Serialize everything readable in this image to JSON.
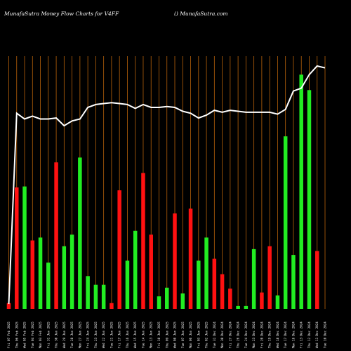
{
  "header": {
    "left": "MunafaSutra  Money Flow  Charts for V4FF",
    "right": "() MunafaSutra.com"
  },
  "colors": {
    "background": "#000000",
    "gridline": "#b8620a",
    "up": "#22ee22",
    "down": "#ff1111",
    "line": "#ffffff"
  },
  "chart_data": {
    "type": "bar",
    "grid": true,
    "categories": [
      "Fri 07 Feb 2025",
      "Thu 06 Feb 2025",
      "Wed 05 Feb 2025",
      "Tue 04 Feb 2025",
      "Mon 03 Feb 2025",
      "Fri 31 Jan 2025",
      "Thu 30 Jan 2025",
      "Wed 29 Jan 2025",
      "Tue 28 Jan 2025",
      "Mon 27 Jan 2025",
      "Fri 24 Jan 2025",
      "Thu 23 Jan 2025",
      "Wed 22 Jan 2025",
      "Tue 21 Jan 2025",
      "Fri 17 Jan 2025",
      "Thu 16 Jan 2025",
      "Wed 15 Jan 2025",
      "Tue 14 Jan 2025",
      "Mon 13 Jan 2025",
      "Fri 10 Jan 2025",
      "Thu 09 Jan 2025",
      "Wed 08 Jan 2025",
      "Tue 07 Jan 2025",
      "Mon 06 Jan 2025",
      "Fri 03 Jan 2025",
      "Thu 02 Jan 2025",
      "Tue 31 Dec 2024",
      "Mon 30 Dec 2024",
      "Fri 27 Dec 2024",
      "Thu 26 Dec 2024",
      "Tue 24 Dec 2024",
      "Mon 23 Dec 2024",
      "Fri 20 Dec 2024",
      "Thu 19 Dec 2024",
      "Wed 18 Dec 2024",
      "Tue 17 Dec 2024",
      "Mon 16 Dec 2024",
      "Fri 13 Dec 2024",
      "Thu 12 Dec 2024",
      "Wed 11 Dec 2024",
      "Tue 10 Dec 2024"
    ],
    "tick_labels": [
      "Fri 07 Feb 2025",
      "Thu 06 Feb 2025",
      "Wed 05 Feb 2025",
      "Tue 04 Feb 2025",
      "Mon 03 Feb 2025",
      "Fri 31 Jan 2025",
      "Thu 30 Jan 2025",
      "Wed 29 Jan 2025",
      "Tue 28 Jan 2025",
      "Mon 27 Jan 2025",
      "Fri 24 Jan 2025",
      "Thu 23 Jan 2025",
      "Wed 22 Jan 2025",
      "Tue 21 Jan 2025",
      "Fri 17 Jan 2025",
      "Thu 16 Jan 2025",
      "Wed 15 Jan 2025",
      "Tue 14 Jan 2025",
      "Mon 13 Jan 2025",
      "Fri 10 Jan 2025",
      "Thu 09 Jan 2025",
      "Wed 08 Jan 2025",
      "Tue 07 Jan 2025",
      "Mon 06 Jan 2025",
      "Fri 03 Jan 2025",
      "Thu 02 Jan 2025",
      "Tue 31 Dec 2024",
      "Mon 30 Dec 2024",
      "Fri 27 Dec 2024",
      "Thu 26 Dec 2024",
      "Tue 24 Dec 2024",
      "Mon 23 Dec 2024",
      "Fri 20 Dec 2024",
      "Thu 19 Dec 2024",
      "Wed 18 Dec 2024",
      "Tue 17 Dec 2024",
      "Mon 16 Dec 2024",
      "Fri 13 Dec 2024",
      "Thu 12 Dec 2024",
      "Wed 11 Dec 2024",
      "Tue 10 Dec 2024"
    ],
    "bars": [
      {
        "value": 6,
        "direction": "down"
      },
      {
        "value": 126,
        "direction": "down"
      },
      {
        "value": 127,
        "direction": "up"
      },
      {
        "value": 71,
        "direction": "down"
      },
      {
        "value": 74,
        "direction": "up"
      },
      {
        "value": 48,
        "direction": "up"
      },
      {
        "value": 152,
        "direction": "down"
      },
      {
        "value": 65,
        "direction": "up"
      },
      {
        "value": 77,
        "direction": "up"
      },
      {
        "value": 157,
        "direction": "up"
      },
      {
        "value": 34,
        "direction": "up"
      },
      {
        "value": 25,
        "direction": "up"
      },
      {
        "value": 25,
        "direction": "up"
      },
      {
        "value": 6,
        "direction": "down"
      },
      {
        "value": 123,
        "direction": "down"
      },
      {
        "value": 50,
        "direction": "up"
      },
      {
        "value": 81,
        "direction": "up"
      },
      {
        "value": 141,
        "direction": "down"
      },
      {
        "value": 77,
        "direction": "down"
      },
      {
        "value": 13,
        "direction": "up"
      },
      {
        "value": 22,
        "direction": "up"
      },
      {
        "value": 99,
        "direction": "down"
      },
      {
        "value": 16,
        "direction": "up"
      },
      {
        "value": 104,
        "direction": "down"
      },
      {
        "value": 50,
        "direction": "up"
      },
      {
        "value": 74,
        "direction": "up"
      },
      {
        "value": 52,
        "direction": "down"
      },
      {
        "value": 36,
        "direction": "down"
      },
      {
        "value": 21,
        "direction": "down"
      },
      {
        "value": 3,
        "direction": "up"
      },
      {
        "value": 3,
        "direction": "up"
      },
      {
        "value": 62,
        "direction": "up"
      },
      {
        "value": 17,
        "direction": "down"
      },
      {
        "value": 65,
        "direction": "down"
      },
      {
        "value": 14,
        "direction": "up"
      },
      {
        "value": 179,
        "direction": "up"
      },
      {
        "value": 56,
        "direction": "up"
      },
      {
        "value": 243,
        "direction": "up"
      },
      {
        "value": 227,
        "direction": "up"
      },
      {
        "value": 60,
        "direction": "down"
      },
      {
        "value": 0,
        "direction": "up"
      }
    ],
    "line_values": [
      5,
      203,
      197,
      200,
      197,
      197,
      198,
      190,
      195,
      197,
      209,
      212,
      213,
      214,
      213,
      212,
      208,
      212,
      209,
      209,
      210,
      209,
      205,
      203,
      198,
      201,
      206,
      204,
      206,
      205,
      204,
      204,
      204,
      204,
      202,
      207,
      226,
      229,
      243,
      252,
      250
    ],
    "ylim": [
      0,
      260
    ]
  }
}
